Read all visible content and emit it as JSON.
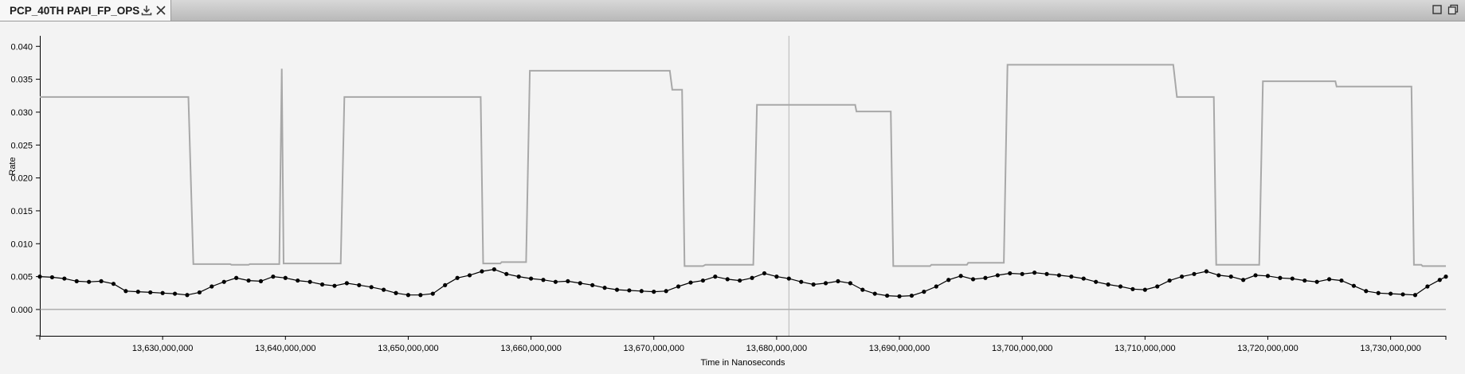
{
  "tab": {
    "title": "PCP_40TH PAPI_FP_OPS",
    "icons": [
      "download-icon",
      "close-icon"
    ]
  },
  "window_controls": [
    "maximize-icon",
    "restore-icon"
  ],
  "chart_data": {
    "type": "line",
    "xlabel": "Time in Nanoseconds",
    "ylabel": "Rate",
    "xlim": [
      13620000000,
      13734500000
    ],
    "ylim": [
      -0.004,
      0.041
    ],
    "x_ticks": [
      13630000000,
      13640000000,
      13650000000,
      13660000000,
      13670000000,
      13680000000,
      13690000000,
      13700000000,
      13710000000,
      13720000000,
      13730000000
    ],
    "x_tick_labels": [
      "13,630,000,000",
      "13,640,000,000",
      "13,650,000,000",
      "13,660,000,000",
      "13,670,000,000",
      "13,680,000,000",
      "13,690,000,000",
      "13,700,000,000",
      "13,710,000,000",
      "13,720,000,000",
      "13,730,000,000"
    ],
    "y_ticks": [
      0.0,
      0.005,
      0.01,
      0.015,
      0.02,
      0.025,
      0.03,
      0.035,
      0.04
    ],
    "y_tick_labels": [
      "0.000",
      "0.005",
      "0.010",
      "0.015",
      "0.020",
      "0.025",
      "0.030",
      "0.035",
      "0.040"
    ],
    "grid": false,
    "cursor_x": 13681000000,
    "series": [
      {
        "color": "#a8a8a8",
        "style": "step",
        "points": [
          [
            13620000000,
            0.0323
          ],
          [
            13632100000,
            0.0323
          ],
          [
            13632500000,
            0.0069
          ],
          [
            13635500000,
            0.0069
          ],
          [
            13635600000,
            0.0068
          ],
          [
            13637000000,
            0.0068
          ],
          [
            13637100000,
            0.0069
          ],
          [
            13639500000,
            0.0069
          ],
          [
            13639700000,
            0.0366
          ],
          [
            13639850000,
            0.007
          ],
          [
            13644500000,
            0.007
          ],
          [
            13644800000,
            0.0323
          ],
          [
            13655900000,
            0.0323
          ],
          [
            13656100000,
            0.007
          ],
          [
            13657500000,
            0.007
          ],
          [
            13657600000,
            0.0072
          ],
          [
            13659600000,
            0.0072
          ],
          [
            13659900000,
            0.0363
          ],
          [
            13671300000,
            0.0363
          ],
          [
            13671500000,
            0.0334
          ],
          [
            13672300000,
            0.0334
          ],
          [
            13672500000,
            0.0066
          ],
          [
            13674000000,
            0.0066
          ],
          [
            13674200000,
            0.0068
          ],
          [
            13678100000,
            0.0068
          ],
          [
            13678400000,
            0.0311
          ],
          [
            13686400000,
            0.0311
          ],
          [
            13686500000,
            0.0301
          ],
          [
            13689300000,
            0.0301
          ],
          [
            13689500000,
            0.0066
          ],
          [
            13692500000,
            0.0066
          ],
          [
            13692600000,
            0.0068
          ],
          [
            13695500000,
            0.0068
          ],
          [
            13695600000,
            0.0071
          ],
          [
            13698500000,
            0.0071
          ],
          [
            13698800000,
            0.0372
          ],
          [
            13712300000,
            0.0372
          ],
          [
            13712600000,
            0.0323
          ],
          [
            13715600000,
            0.0323
          ],
          [
            13715800000,
            0.0068
          ],
          [
            13719300000,
            0.0068
          ],
          [
            13719600000,
            0.0347
          ],
          [
            13725500000,
            0.0347
          ],
          [
            13725600000,
            0.0339
          ],
          [
            13731700000,
            0.0339
          ],
          [
            13731900000,
            0.0068
          ],
          [
            13732500000,
            0.0068
          ],
          [
            13732600000,
            0.0066
          ],
          [
            13734500000,
            0.0066
          ]
        ]
      },
      {
        "color": "#000000",
        "style": "markers",
        "points": [
          [
            13620000000,
            0.005
          ],
          [
            13621000000,
            0.0049
          ],
          [
            13622000000,
            0.0047
          ],
          [
            13623000000,
            0.0043
          ],
          [
            13624000000,
            0.0042
          ],
          [
            13625000000,
            0.0043
          ],
          [
            13626000000,
            0.0039
          ],
          [
            13627000000,
            0.0028
          ],
          [
            13628000000,
            0.0027
          ],
          [
            13629000000,
            0.0026
          ],
          [
            13630000000,
            0.0025
          ],
          [
            13631000000,
            0.0024
          ],
          [
            13632000000,
            0.0022
          ],
          [
            13633000000,
            0.0026
          ],
          [
            13634000000,
            0.0035
          ],
          [
            13635000000,
            0.0042
          ],
          [
            13636000000,
            0.0048
          ],
          [
            13637000000,
            0.0044
          ],
          [
            13638000000,
            0.0043
          ],
          [
            13639000000,
            0.005
          ],
          [
            13640000000,
            0.0048
          ],
          [
            13641000000,
            0.0044
          ],
          [
            13642000000,
            0.0042
          ],
          [
            13643000000,
            0.0038
          ],
          [
            13644000000,
            0.0036
          ],
          [
            13645000000,
            0.004
          ],
          [
            13646000000,
            0.0037
          ],
          [
            13647000000,
            0.0034
          ],
          [
            13648000000,
            0.003
          ],
          [
            13649000000,
            0.0025
          ],
          [
            13650000000,
            0.0022
          ],
          [
            13651000000,
            0.0022
          ],
          [
            13652000000,
            0.0024
          ],
          [
            13653000000,
            0.0037
          ],
          [
            13654000000,
            0.0048
          ],
          [
            13655000000,
            0.0052
          ],
          [
            13656000000,
            0.0058
          ],
          [
            13657000000,
            0.0061
          ],
          [
            13658000000,
            0.0054
          ],
          [
            13659000000,
            0.005
          ],
          [
            13660000000,
            0.0047
          ],
          [
            13661000000,
            0.0045
          ],
          [
            13662000000,
            0.0042
          ],
          [
            13663000000,
            0.0043
          ],
          [
            13664000000,
            0.004
          ],
          [
            13665000000,
            0.0037
          ],
          [
            13666000000,
            0.0033
          ],
          [
            13667000000,
            0.003
          ],
          [
            13668000000,
            0.0029
          ],
          [
            13669000000,
            0.0028
          ],
          [
            13670000000,
            0.0027
          ],
          [
            13671000000,
            0.0028
          ],
          [
            13672000000,
            0.0035
          ],
          [
            13673000000,
            0.0041
          ],
          [
            13674000000,
            0.0044
          ],
          [
            13675000000,
            0.005
          ],
          [
            13676000000,
            0.0046
          ],
          [
            13677000000,
            0.0044
          ],
          [
            13678000000,
            0.0048
          ],
          [
            13679000000,
            0.0055
          ],
          [
            13680000000,
            0.005
          ],
          [
            13681000000,
            0.0047
          ],
          [
            13682000000,
            0.0042
          ],
          [
            13683000000,
            0.0038
          ],
          [
            13684000000,
            0.004
          ],
          [
            13685000000,
            0.0043
          ],
          [
            13686000000,
            0.004
          ],
          [
            13687000000,
            0.003
          ],
          [
            13688000000,
            0.0024
          ],
          [
            13689000000,
            0.0021
          ],
          [
            13690000000,
            0.002
          ],
          [
            13691000000,
            0.0021
          ],
          [
            13692000000,
            0.0027
          ],
          [
            13693000000,
            0.0035
          ],
          [
            13694000000,
            0.0045
          ],
          [
            13695000000,
            0.0051
          ],
          [
            13696000000,
            0.0046
          ],
          [
            13697000000,
            0.0048
          ],
          [
            13698000000,
            0.0052
          ],
          [
            13699000000,
            0.0055
          ],
          [
            13700000000,
            0.0054
          ],
          [
            13701000000,
            0.0056
          ],
          [
            13702000000,
            0.0054
          ],
          [
            13703000000,
            0.0052
          ],
          [
            13704000000,
            0.005
          ],
          [
            13705000000,
            0.0047
          ],
          [
            13706000000,
            0.0042
          ],
          [
            13707000000,
            0.0038
          ],
          [
            13708000000,
            0.0035
          ],
          [
            13709000000,
            0.0031
          ],
          [
            13710000000,
            0.003
          ],
          [
            13711000000,
            0.0035
          ],
          [
            13712000000,
            0.0044
          ],
          [
            13713000000,
            0.005
          ],
          [
            13714000000,
            0.0054
          ],
          [
            13715000000,
            0.0058
          ],
          [
            13716000000,
            0.0052
          ],
          [
            13717000000,
            0.005
          ],
          [
            13718000000,
            0.0045
          ],
          [
            13719000000,
            0.0052
          ],
          [
            13720000000,
            0.0051
          ],
          [
            13721000000,
            0.0048
          ],
          [
            13722000000,
            0.0047
          ],
          [
            13723000000,
            0.0044
          ],
          [
            13724000000,
            0.0042
          ],
          [
            13725000000,
            0.0046
          ],
          [
            13726000000,
            0.0044
          ],
          [
            13727000000,
            0.0036
          ],
          [
            13728000000,
            0.0028
          ],
          [
            13729000000,
            0.0025
          ],
          [
            13730000000,
            0.0024
          ],
          [
            13731000000,
            0.0023
          ],
          [
            13732000000,
            0.0022
          ],
          [
            13733000000,
            0.0035
          ],
          [
            13734000000,
            0.0045
          ],
          [
            13734500000,
            0.005
          ]
        ]
      }
    ]
  }
}
